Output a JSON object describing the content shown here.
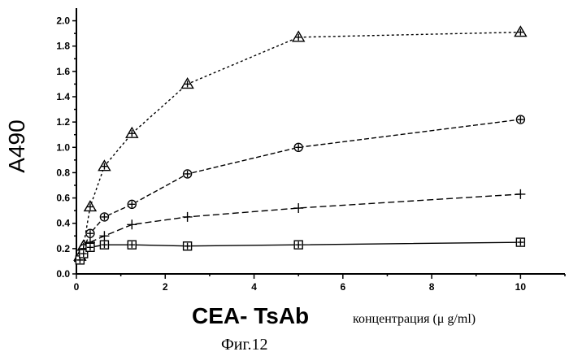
{
  "chart_data": {
    "type": "line",
    "title": "",
    "ylabel": "A490",
    "xlabel": "CEA- TsAb",
    "xlabel_suffix": "концентрация (μ g/ml)",
    "caption": "Фиг.12",
    "xlim": [
      0,
      11
    ],
    "ylim": [
      0,
      2.1
    ],
    "x_ticks": [
      0,
      2,
      4,
      6,
      8,
      10
    ],
    "y_ticks": [
      0.0,
      0.2,
      0.4,
      0.6,
      0.8,
      1.0,
      1.2,
      1.4,
      1.6,
      1.8,
      2.0
    ],
    "series": [
      {
        "marker": "triangle",
        "dash": "3,3",
        "x": [
          0.08,
          0.16,
          0.31,
          0.63,
          1.25,
          2.5,
          5,
          10
        ],
        "y": [
          0.14,
          0.22,
          0.53,
          0.85,
          1.11,
          1.5,
          1.87,
          1.91
        ]
      },
      {
        "marker": "circle",
        "dash": "6,3",
        "x": [
          0.08,
          0.16,
          0.31,
          0.63,
          1.25,
          2.5,
          5,
          10
        ],
        "y": [
          0.13,
          0.2,
          0.32,
          0.45,
          0.55,
          0.79,
          1.0,
          1.22
        ]
      },
      {
        "marker": "plus",
        "dash": "8,4",
        "x": [
          0.08,
          0.16,
          0.31,
          0.63,
          1.25,
          2.5,
          5,
          10
        ],
        "y": [
          0.12,
          0.18,
          0.25,
          0.3,
          0.39,
          0.45,
          0.52,
          0.63
        ]
      },
      {
        "marker": "square",
        "dash": "",
        "x": [
          0.08,
          0.16,
          0.31,
          0.63,
          1.25,
          2.5,
          5,
          10
        ],
        "y": [
          0.11,
          0.16,
          0.21,
          0.23,
          0.23,
          0.22,
          0.23,
          0.25
        ]
      }
    ]
  }
}
